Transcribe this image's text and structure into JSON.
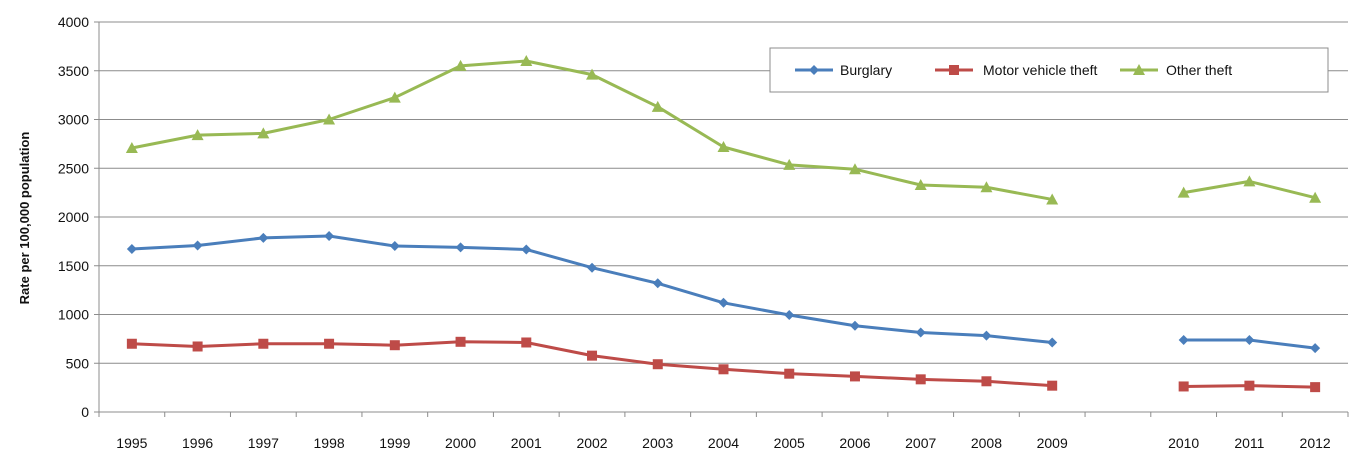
{
  "chart_data": {
    "type": "line",
    "title": "",
    "xlabel": "",
    "ylabel": "Rate per 100,000 population",
    "ylim": [
      0,
      4000
    ],
    "yticks": [
      "0",
      "500",
      "1000",
      "1500",
      "2000",
      "2500",
      "3000",
      "3500",
      "4000"
    ],
    "categories": [
      "1995",
      "1996",
      "1997",
      "1998",
      "1999",
      "2000",
      "2001",
      "2002",
      "2003",
      "2004",
      "2005",
      "2006",
      "2007",
      "2008",
      "2009",
      "",
      "2010",
      "2011",
      "2012"
    ],
    "grid": true,
    "legend_position": "top-right",
    "series": [
      {
        "name": "Burglary",
        "color": "#4a7ebb",
        "marker": "diamond",
        "values": [
          1672,
          1708,
          1786,
          1805,
          1702,
          1688,
          1667,
          1480,
          1320,
          1120,
          995,
          885,
          815,
          783,
          713,
          null,
          738,
          738,
          655
        ]
      },
      {
        "name": "Motor vehicle theft",
        "color": "#be4b48",
        "marker": "square",
        "values": [
          700,
          672,
          700,
          700,
          685,
          720,
          713,
          578,
          490,
          438,
          393,
          365,
          335,
          315,
          270,
          null,
          262,
          270,
          255
        ]
      },
      {
        "name": "Other theft",
        "color": "#98b954",
        "marker": "triangle",
        "values": [
          2708,
          2840,
          2858,
          3000,
          3225,
          3550,
          3600,
          3460,
          3130,
          2718,
          2535,
          2490,
          2328,
          2305,
          2180,
          null,
          2250,
          2365,
          2198
        ]
      }
    ]
  }
}
